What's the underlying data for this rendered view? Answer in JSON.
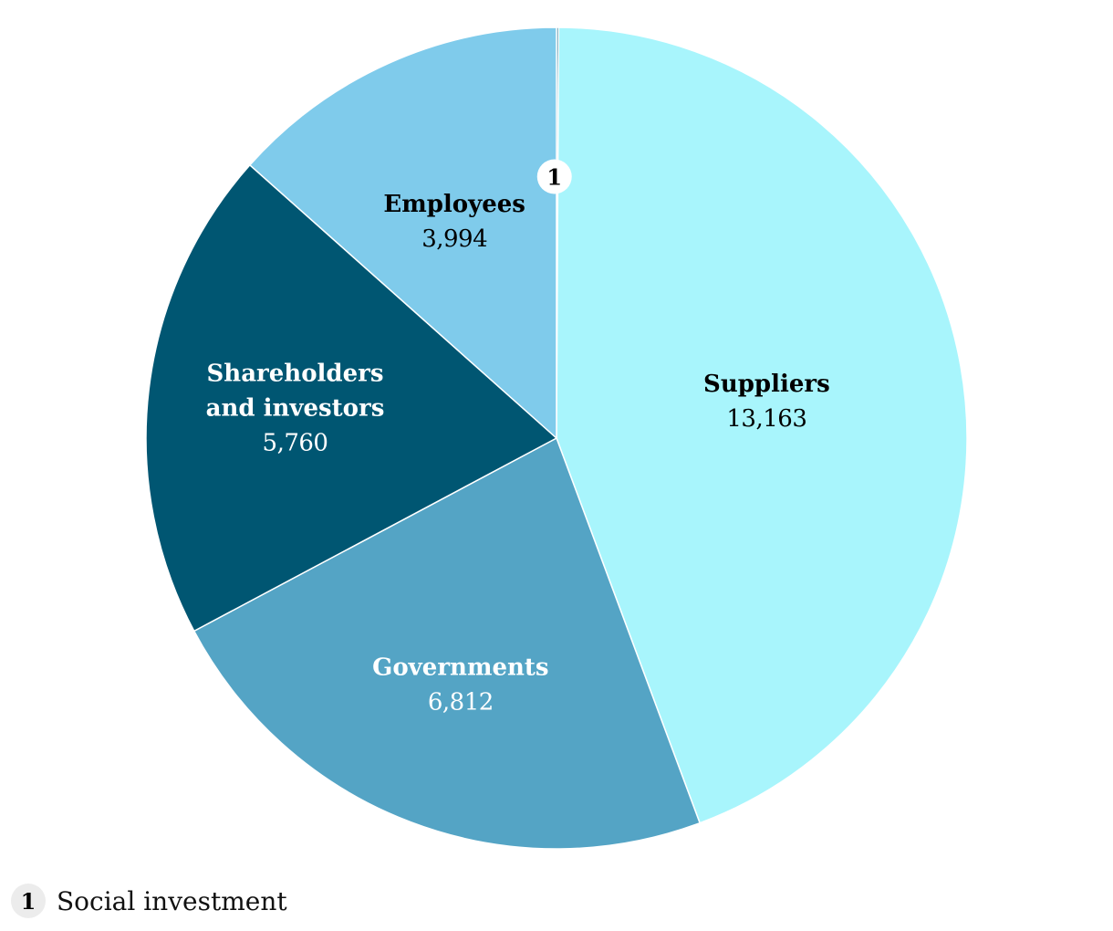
{
  "chart_data": {
    "type": "pie",
    "slices": [
      {
        "name": "Social investment",
        "value": 25,
        "marker": "1",
        "color": "#1a6d8c"
      },
      {
        "name": "Suppliers",
        "value": 13163,
        "value_label": "13,163",
        "color": "#a8f5fc",
        "text_color": "#000000"
      },
      {
        "name": "Governments",
        "value": 6812,
        "value_label": "6,812",
        "color": "#54a4c5",
        "text_color": "#ffffff"
      },
      {
        "name": "Shareholders and investors",
        "lines": [
          "Shareholders",
          "and investors"
        ],
        "value": 5760,
        "value_label": "5,760",
        "color": "#005672",
        "text_color": "#ffffff"
      },
      {
        "name": "Employees",
        "value": 3994,
        "value_label": "3,994",
        "color": "#7fcbeb",
        "text_color": "#000000"
      }
    ],
    "footnote": {
      "marker": "1",
      "text": "Social investment"
    }
  }
}
